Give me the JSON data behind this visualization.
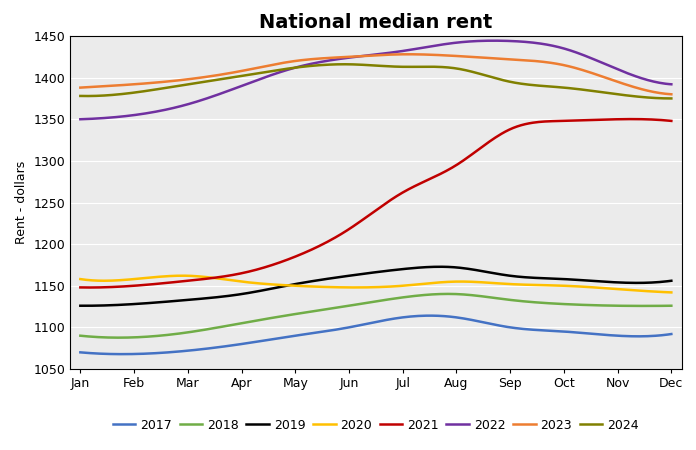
{
  "title": "National median rent",
  "ylabel": "Rent - dollars",
  "months": [
    "Jan",
    "Feb",
    "Mar",
    "Apr",
    "May",
    "Jun",
    "Jul",
    "Aug",
    "Sep",
    "Oct",
    "Nov",
    "Dec"
  ],
  "ylim": [
    1050,
    1450
  ],
  "yticks": [
    1050,
    1100,
    1150,
    1200,
    1250,
    1300,
    1350,
    1400,
    1450
  ],
  "series": {
    "2017": {
      "color": "#4472C4",
      "values": [
        1070,
        1068,
        1072,
        1080,
        1090,
        1100,
        1112,
        1112,
        1100,
        1095,
        1090,
        1092
      ]
    },
    "2018": {
      "color": "#70AD47",
      "values": [
        1090,
        1088,
        1094,
        1105,
        1116,
        1126,
        1136,
        1140,
        1133,
        1128,
        1126,
        1126
      ]
    },
    "2019": {
      "color": "#000000",
      "values": [
        1126,
        1128,
        1133,
        1140,
        1152,
        1162,
        1170,
        1172,
        1162,
        1158,
        1154,
        1156
      ]
    },
    "2020": {
      "color": "#FFC000",
      "values": [
        1158,
        1158,
        1162,
        1155,
        1150,
        1148,
        1150,
        1155,
        1152,
        1150,
        1146,
        1142
      ]
    },
    "2021": {
      "color": "#C00000",
      "values": [
        1148,
        1150,
        1156,
        1165,
        1185,
        1218,
        1262,
        1295,
        1338,
        1348,
        1350,
        1348
      ]
    },
    "2022": {
      "color": "#7030A0",
      "values": [
        1350,
        1355,
        1368,
        1390,
        1412,
        1424,
        1432,
        1442,
        1444,
        1435,
        1410,
        1392
      ]
    },
    "2023": {
      "color": "#ED7D31",
      "values": [
        1388,
        1392,
        1398,
        1408,
        1420,
        1425,
        1428,
        1426,
        1422,
        1415,
        1395,
        1380
      ]
    },
    "2024": {
      "color": "#808000",
      "values": [
        1378,
        1382,
        1392,
        1402,
        1412,
        1416,
        1413,
        1411,
        1395,
        1388,
        1380,
        1375
      ]
    }
  },
  "legend_order": [
    "2017",
    "2018",
    "2019",
    "2020",
    "2021",
    "2022",
    "2023",
    "2024"
  ],
  "figure_bg": "#FFFFFF",
  "plot_bg": "#EBEBEB",
  "grid_color": "#FFFFFF",
  "spine_color": "#000000",
  "title_fontsize": 14,
  "axis_label_fontsize": 9,
  "tick_fontsize": 9,
  "legend_fontsize": 9,
  "linewidth": 1.8
}
